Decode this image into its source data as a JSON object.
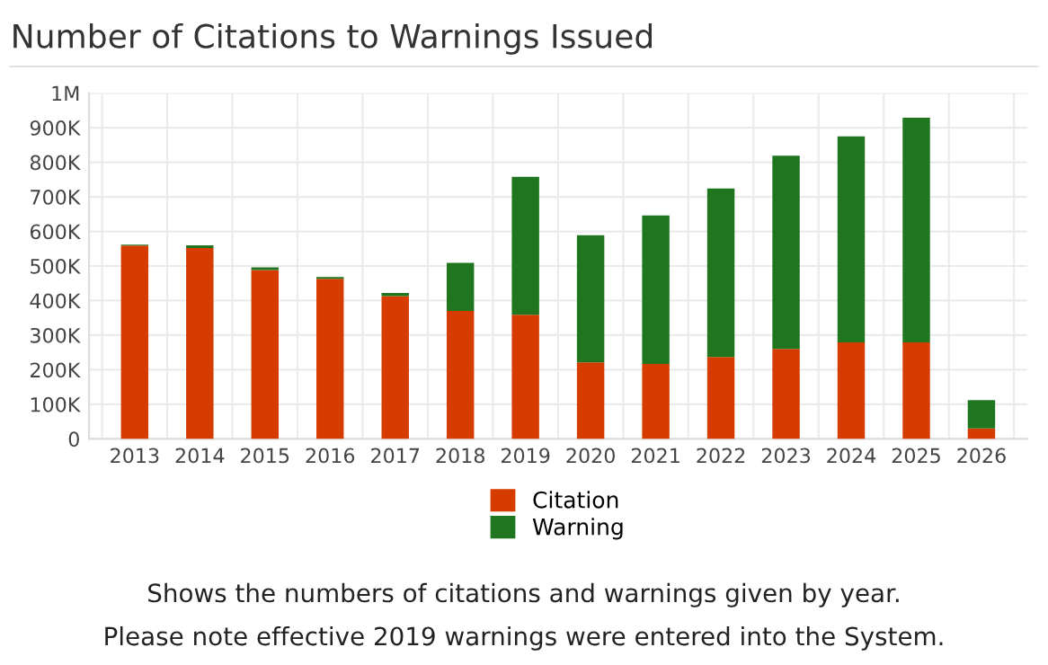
{
  "chart_data": {
    "type": "bar",
    "title": "Number of Citations to Warnings Issued",
    "categories": [
      "2013",
      "2014",
      "2015",
      "2016",
      "2017",
      "2018",
      "2019",
      "2020",
      "2021",
      "2022",
      "2023",
      "2024",
      "2025",
      "2026"
    ],
    "stacked": true,
    "series": [
      {
        "name": "Citation",
        "color": "#d63c00",
        "values": [
          559000,
          552000,
          488000,
          463000,
          413000,
          370000,
          359000,
          221000,
          217000,
          237000,
          260000,
          279000,
          279000,
          30000
        ]
      },
      {
        "name": "Warning",
        "color": "#1f761f",
        "values": [
          3000,
          8000,
          8000,
          5000,
          9000,
          139000,
          399000,
          368000,
          429000,
          487000,
          559000,
          596000,
          650000,
          82000
        ]
      }
    ],
    "ylim": [
      0,
      1000000
    ],
    "yticks": [
      0,
      {
        "value": 100000,
        "label": "100K"
      },
      {
        "value": 200000,
        "label": "200K"
      },
      {
        "value": 300000,
        "label": "300K"
      },
      {
        "value": 400000,
        "label": "400K"
      },
      {
        "value": 500000,
        "label": "500K"
      },
      {
        "value": 600000,
        "label": "600K"
      },
      {
        "value": 700000,
        "label": "700K"
      },
      {
        "value": 800000,
        "label": "800K"
      },
      {
        "value": 900000,
        "label": "900K"
      },
      {
        "value": 1000000,
        "label": "1M"
      }
    ],
    "grid": true,
    "legend": "bottom",
    "annotations": [
      "Shows the numbers of citations and warnings given by year.",
      "Please note effective 2019 warnings were entered into the System."
    ]
  }
}
